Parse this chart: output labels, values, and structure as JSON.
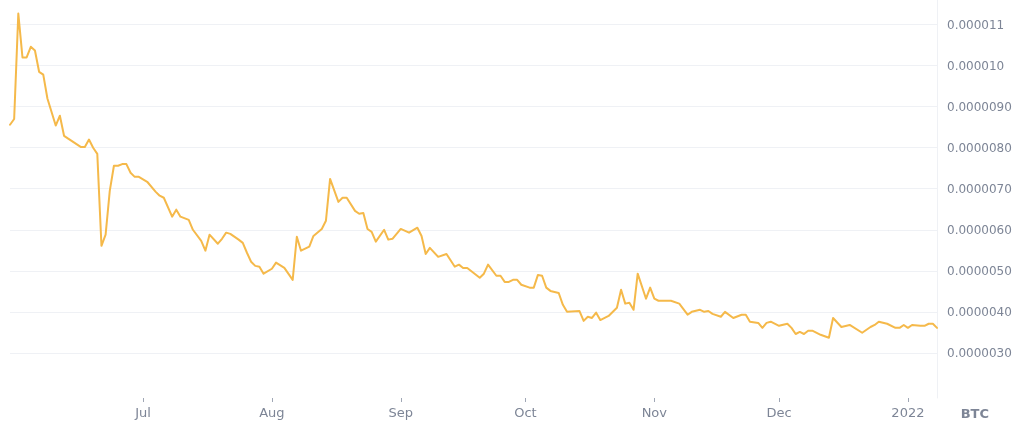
{
  "chart_data": {
    "type": "line",
    "ylabel": "BTC",
    "x": [
      "2021-05-30",
      "2021-05-31",
      "2021-06-01",
      "2021-06-02",
      "2021-06-03",
      "2021-06-04",
      "2021-06-05",
      "2021-06-06",
      "2021-06-07",
      "2021-06-08",
      "2021-06-10",
      "2021-06-11",
      "2021-06-12",
      "2021-06-13",
      "2021-06-16",
      "2021-06-17",
      "2021-06-18",
      "2021-06-19",
      "2021-06-20",
      "2021-06-21",
      "2021-06-22",
      "2021-06-23",
      "2021-06-24",
      "2021-06-25",
      "2021-06-26",
      "2021-06-27",
      "2021-06-28",
      "2021-06-29",
      "2021-06-30",
      "2021-07-02",
      "2021-07-04",
      "2021-07-05",
      "2021-07-06",
      "2021-07-08",
      "2021-07-09",
      "2021-07-10",
      "2021-07-12",
      "2021-07-13",
      "2021-07-15",
      "2021-07-16",
      "2021-07-17",
      "2021-07-19",
      "2021-07-20",
      "2021-07-21",
      "2021-07-22",
      "2021-07-24",
      "2021-07-25",
      "2021-07-26",
      "2021-07-27",
      "2021-07-28",
      "2021-07-29",
      "2021-07-30",
      "2021-08-01",
      "2021-08-02",
      "2021-08-04",
      "2021-08-06",
      "2021-08-07",
      "2021-08-08",
      "2021-08-10",
      "2021-08-11",
      "2021-08-13",
      "2021-08-14",
      "2021-08-15",
      "2021-08-17",
      "2021-08-18",
      "2021-08-19",
      "2021-08-21",
      "2021-08-22",
      "2021-08-23",
      "2021-08-24",
      "2021-08-25",
      "2021-08-26",
      "2021-08-28",
      "2021-08-29",
      "2021-08-30",
      "2021-09-01",
      "2021-09-03",
      "2021-09-05",
      "2021-09-06",
      "2021-09-07",
      "2021-09-08",
      "2021-09-10",
      "2021-09-12",
      "2021-09-14",
      "2021-09-15",
      "2021-09-16",
      "2021-09-17",
      "2021-09-20",
      "2021-09-21",
      "2021-09-22",
      "2021-09-24",
      "2021-09-25",
      "2021-09-26",
      "2021-09-27",
      "2021-09-28",
      "2021-09-29",
      "2021-09-30",
      "2021-10-02",
      "2021-10-03",
      "2021-10-04",
      "2021-10-05",
      "2021-10-06",
      "2021-10-07",
      "2021-10-09",
      "2021-10-10",
      "2021-10-11",
      "2021-10-14",
      "2021-10-15",
      "2021-10-16",
      "2021-10-17",
      "2021-10-18",
      "2021-10-19",
      "2021-10-21",
      "2021-10-23",
      "2021-10-24",
      "2021-10-25",
      "2021-10-26",
      "2021-10-27",
      "2021-10-28",
      "2021-10-30",
      "2021-10-31",
      "2021-11-01",
      "2021-11-02",
      "2021-11-05",
      "2021-11-07",
      "2021-11-09",
      "2021-11-10",
      "2021-11-12",
      "2021-11-13",
      "2021-11-14",
      "2021-11-15",
      "2021-11-17",
      "2021-11-18",
      "2021-11-20",
      "2021-11-22",
      "2021-11-23",
      "2021-11-24",
      "2021-11-26",
      "2021-11-27",
      "2021-11-28",
      "2021-11-29",
      "2021-12-01",
      "2021-12-03",
      "2021-12-04",
      "2021-12-05",
      "2021-12-06",
      "2021-12-07",
      "2021-12-08",
      "2021-12-09",
      "2021-12-11",
      "2021-12-13",
      "2021-12-14",
      "2021-12-16",
      "2021-12-18",
      "2021-12-21",
      "2021-12-23",
      "2021-12-24",
      "2021-12-25",
      "2021-12-27",
      "2021-12-29",
      "2021-12-30",
      "2021-12-31",
      "2022-01-01",
      "2022-01-02",
      "2022-01-04",
      "2022-01-05",
      "2022-01-06",
      "2022-01-07",
      "2022-01-08"
    ],
    "series": [
      {
        "color": "#f5b94a",
        "values": [
          8.56e-06,
          8.7e-06,
          1.127e-05,
          1.02e-05,
          1.02e-05,
          1.046e-05,
          1.037e-05,
          9.85e-06,
          9.78e-06,
          9.2e-06,
          8.54e-06,
          8.78e-06,
          8.29e-06,
          8.22e-06,
          8.02e-06,
          8.02e-06,
          8.2e-06,
          8e-06,
          7.85e-06,
          5.61e-06,
          5.88e-06,
          6.95e-06,
          7.56e-06,
          7.56e-06,
          7.6e-06,
          7.6e-06,
          7.39e-06,
          7.29e-06,
          7.29e-06,
          7.17e-06,
          6.93e-06,
          6.83e-06,
          6.78e-06,
          6.32e-06,
          6.49e-06,
          6.32e-06,
          6.24e-06,
          6e-06,
          5.73e-06,
          5.49e-06,
          5.88e-06,
          5.66e-06,
          5.78e-06,
          5.93e-06,
          5.9e-06,
          5.76e-06,
          5.68e-06,
          5.44e-06,
          5.22e-06,
          5.12e-06,
          5.1e-06,
          4.93e-06,
          5.05e-06,
          5.2e-06,
          5.07e-06,
          4.78e-06,
          5.83e-06,
          5.49e-06,
          5.59e-06,
          5.85e-06,
          6.02e-06,
          6.22e-06,
          7.24e-06,
          6.68e-06,
          6.78e-06,
          6.78e-06,
          6.46e-06,
          6.39e-06,
          6.41e-06,
          6.02e-06,
          5.95e-06,
          5.71e-06,
          6e-06,
          5.76e-06,
          5.78e-06,
          6.02e-06,
          5.93e-06,
          6.05e-06,
          5.85e-06,
          5.41e-06,
          5.56e-06,
          5.34e-06,
          5.41e-06,
          5.1e-06,
          5.15e-06,
          5.07e-06,
          5.07e-06,
          4.83e-06,
          4.93e-06,
          5.15e-06,
          4.88e-06,
          4.88e-06,
          4.73e-06,
          4.73e-06,
          4.78e-06,
          4.78e-06,
          4.66e-06,
          4.59e-06,
          4.59e-06,
          4.9e-06,
          4.88e-06,
          4.59e-06,
          4.51e-06,
          4.46e-06,
          4.17e-06,
          4e-06,
          4.02e-06,
          3.78e-06,
          3.88e-06,
          3.85e-06,
          3.98e-06,
          3.8e-06,
          3.9e-06,
          4.1e-06,
          4.54e-06,
          4.2e-06,
          4.22e-06,
          4.05e-06,
          4.93e-06,
          4.32e-06,
          4.59e-06,
          4.32e-06,
          4.27e-06,
          4.27e-06,
          4.2e-06,
          3.93e-06,
          4e-06,
          4.05e-06,
          4e-06,
          4.02e-06,
          3.95e-06,
          3.88e-06,
          4e-06,
          3.85e-06,
          3.93e-06,
          3.93e-06,
          3.76e-06,
          3.73e-06,
          3.61e-06,
          3.73e-06,
          3.76e-06,
          3.66e-06,
          3.71e-06,
          3.61e-06,
          3.46e-06,
          3.51e-06,
          3.46e-06,
          3.54e-06,
          3.54e-06,
          3.44e-06,
          3.37e-06,
          3.85e-06,
          3.63e-06,
          3.68e-06,
          3.49e-06,
          3.63e-06,
          3.68e-06,
          3.76e-06,
          3.71e-06,
          3.61e-06,
          3.61e-06,
          3.68e-06,
          3.61e-06,
          3.68e-06,
          3.66e-06,
          3.66e-06,
          3.71e-06,
          3.71e-06,
          3.61e-06
        ]
      }
    ],
    "xlim": [
      "2021-05-30",
      "2022-01-08"
    ],
    "xticks": [
      {
        "value": "2021-07-01",
        "label": "Jul"
      },
      {
        "value": "2021-08-01",
        "label": "Aug"
      },
      {
        "value": "2021-09-01",
        "label": "Sep"
      },
      {
        "value": "2021-10-01",
        "label": "Oct"
      },
      {
        "value": "2021-11-01",
        "label": "Nov"
      },
      {
        "value": "2021-12-01",
        "label": "Dec"
      },
      {
        "value": "2022-01-01",
        "label": "2022"
      }
    ],
    "ylim": [
      1.9e-06,
      1.16e-05
    ],
    "yticks": [
      {
        "value": 3e-06,
        "label": "0.0000030"
      },
      {
        "value": 4e-06,
        "label": "0.0000040"
      },
      {
        "value": 5e-06,
        "label": "0.0000050"
      },
      {
        "value": 6e-06,
        "label": "0.0000060"
      },
      {
        "value": 7e-06,
        "label": "0.0000070"
      },
      {
        "value": 8e-06,
        "label": "0.0000080"
      },
      {
        "value": 9e-06,
        "label": "0.0000090"
      },
      {
        "value": 1e-05,
        "label": "0.000010"
      },
      {
        "value": 1.1e-05,
        "label": "0.000011"
      }
    ],
    "grid": "y",
    "marker": "none",
    "line_style": "solid"
  }
}
